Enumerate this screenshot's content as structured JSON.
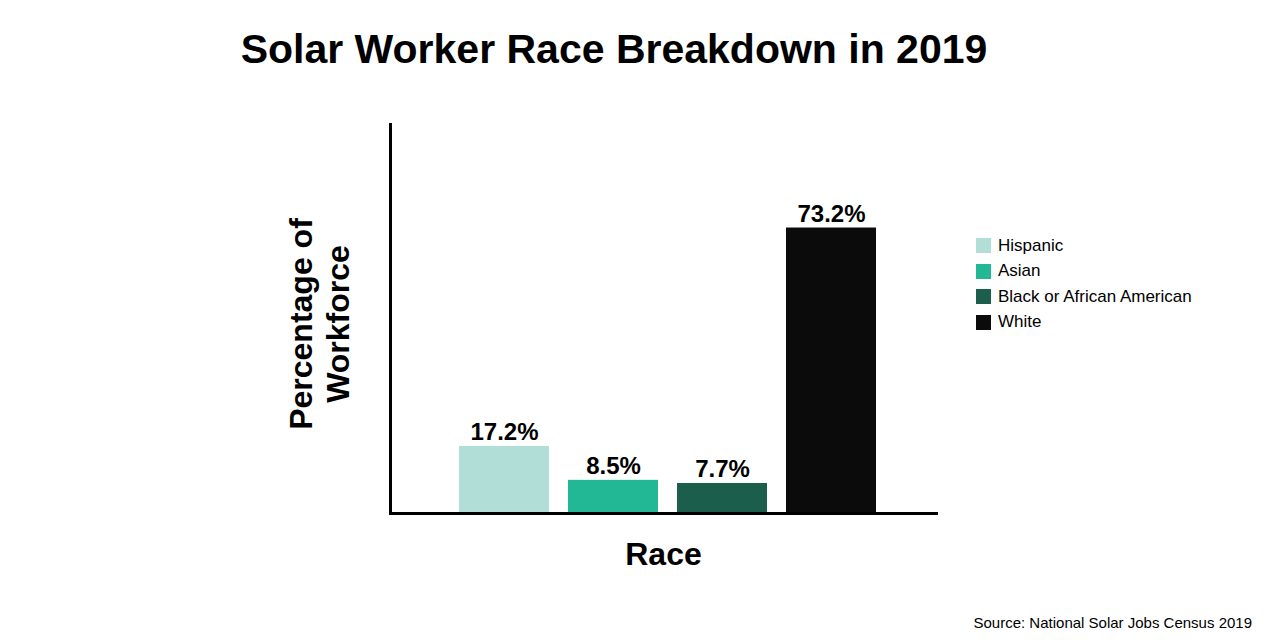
{
  "chart_data": {
    "type": "bar",
    "title": "Solar Worker Race Breakdown in 2019",
    "xlabel": "Race",
    "ylabel": "Percentage of Workforce",
    "caption": "Source: National Solar Jobs Census 2019",
    "categories": [
      "Hispanic",
      "Asian",
      "Black or African American",
      "White"
    ],
    "values": [
      17.2,
      8.5,
      7.7,
      73.2
    ],
    "value_labels": [
      "17.2%",
      "8.5%",
      "7.7%",
      "73.2%"
    ],
    "colors": [
      "#b2ded8",
      "#22b795",
      "#1a5e4b",
      "#0b0b0c"
    ],
    "ylim": [
      0,
      100
    ],
    "yticks": [],
    "grid": false,
    "legend": "right",
    "data_labels": true,
    "tick_labels": false
  }
}
